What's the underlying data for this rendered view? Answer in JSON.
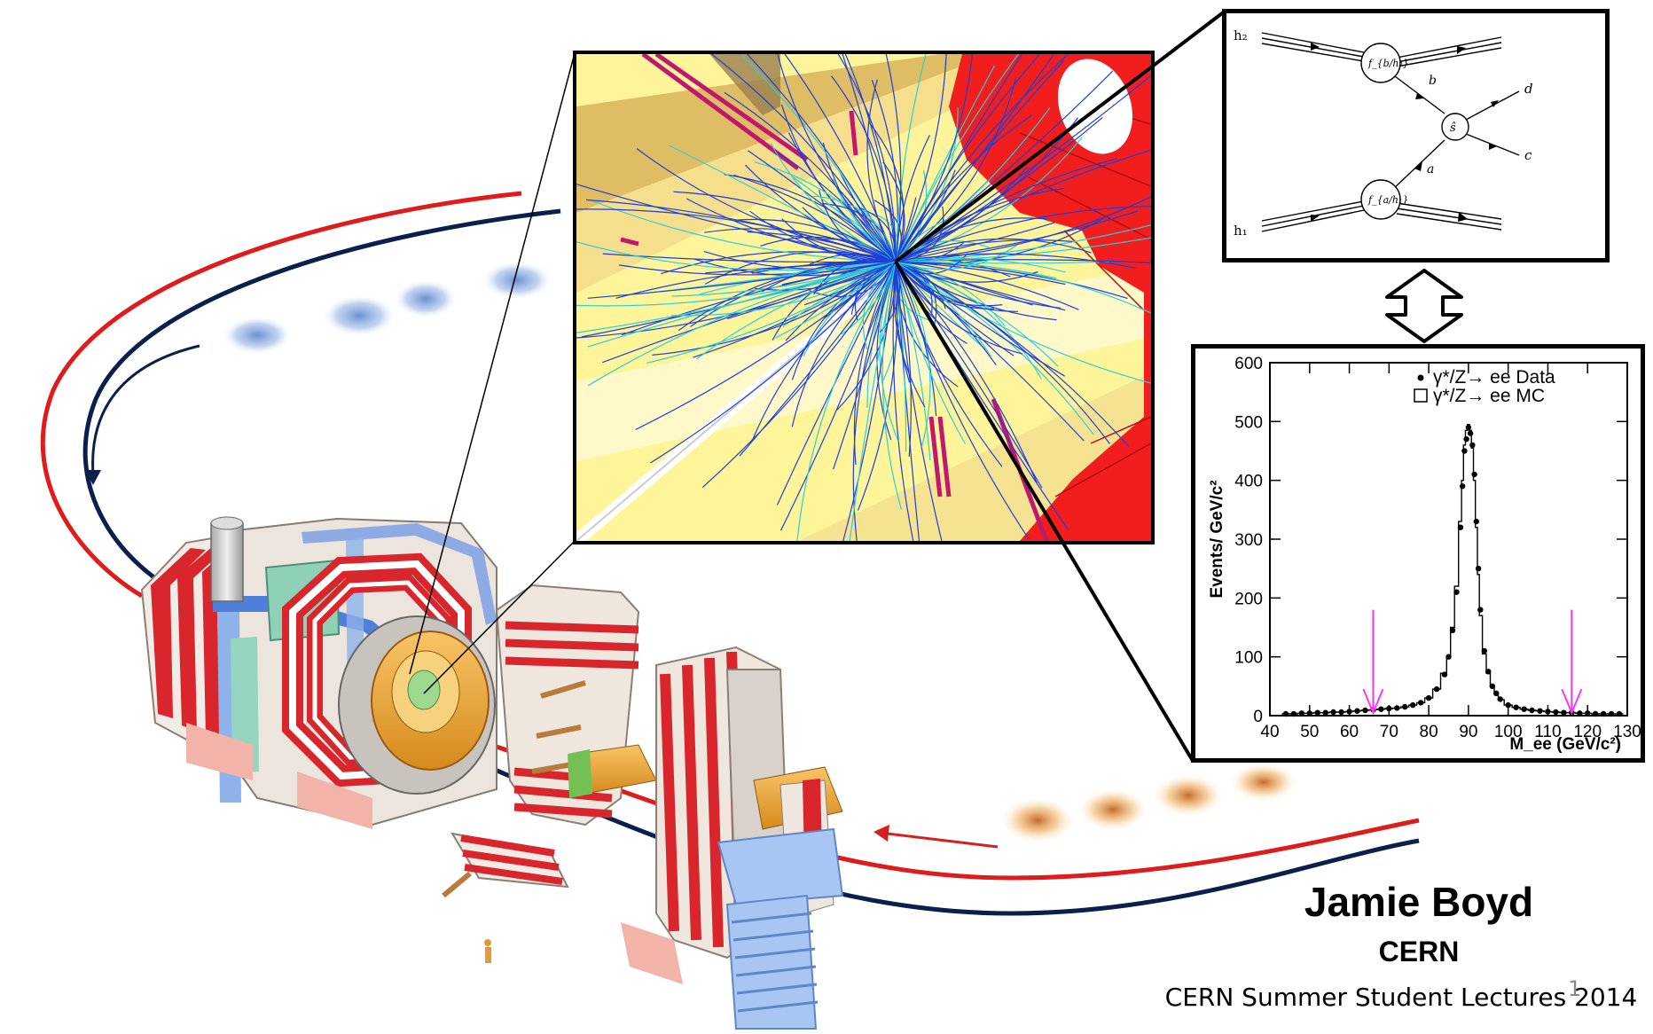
{
  "credits": {
    "author": "Jamie Boyd",
    "affiliation": "CERN",
    "event": "CERN Summer Student Lectures 2014",
    "slide_number": "1"
  },
  "feynman": {
    "labels": {
      "h2": "h₂",
      "h1": "h₁",
      "f_top": "f_{b/h₂}",
      "f_bot": "f_{a/h₁}",
      "b": "b",
      "a": "a",
      "shat": "ŝ",
      "d": "d",
      "c": "c"
    }
  },
  "chart_data": {
    "type": "histogram",
    "xlabel": "M_ee (GeV/c²)",
    "ylabel": "Events/ GeV/c²",
    "xlim": [
      40,
      130
    ],
    "ylim": [
      0,
      600
    ],
    "xticks": [
      40,
      50,
      60,
      70,
      80,
      90,
      100,
      110,
      120,
      130
    ],
    "yticks": [
      0,
      100,
      200,
      300,
      400,
      500,
      600
    ],
    "legend": {
      "placement": "top-right",
      "entries": [
        "γ*/Z→ ee Data",
        "γ*/Z→ ee MC"
      ]
    },
    "mass_window_arrows": [
      66,
      116
    ],
    "arrow_color": "#ff33ff",
    "series": [
      {
        "name": "γ*/Z→ ee Data",
        "style": "points",
        "x": [
          44,
          46,
          48,
          50,
          52,
          54,
          56,
          58,
          60,
          62,
          64,
          66,
          68,
          70,
          72,
          74,
          76,
          78,
          80,
          82,
          84,
          85,
          86,
          87,
          88,
          88.5,
          89,
          89.5,
          90,
          90.5,
          91,
          91.5,
          92,
          92.5,
          93,
          94,
          95,
          96,
          97,
          98,
          100,
          102,
          104,
          106,
          108,
          110,
          112,
          114,
          116,
          118,
          120,
          122,
          124,
          126,
          128
        ],
        "y": [
          3,
          3,
          4,
          4,
          5,
          5,
          6,
          6,
          7,
          8,
          9,
          10,
          11,
          12,
          13,
          15,
          18,
          22,
          30,
          45,
          70,
          100,
          145,
          210,
          320,
          390,
          450,
          470,
          490,
          480,
          460,
          410,
          330,
          250,
          180,
          110,
          75,
          50,
          38,
          28,
          18,
          14,
          11,
          9,
          8,
          7,
          6,
          5,
          5,
          4,
          4,
          3,
          3,
          3,
          3
        ]
      },
      {
        "name": "γ*/Z→ ee MC",
        "style": "step",
        "x": [
          44,
          46,
          48,
          50,
          52,
          54,
          56,
          58,
          60,
          62,
          64,
          66,
          68,
          70,
          72,
          74,
          76,
          78,
          80,
          82,
          84,
          85,
          86,
          87,
          88,
          88.5,
          89,
          89.5,
          90,
          90.5,
          91,
          91.5,
          92,
          92.5,
          93,
          94,
          95,
          96,
          97,
          98,
          100,
          102,
          104,
          106,
          108,
          110,
          112,
          114,
          116,
          118,
          120,
          122,
          124,
          126,
          128
        ],
        "y": [
          3,
          3,
          4,
          4,
          5,
          5,
          6,
          6,
          7,
          8,
          9,
          10,
          11,
          12,
          13,
          15,
          18,
          22,
          30,
          45,
          72,
          100,
          150,
          220,
          330,
          400,
          460,
          485,
          495,
          485,
          455,
          400,
          320,
          240,
          170,
          105,
          72,
          50,
          37,
          27,
          18,
          14,
          11,
          9,
          8,
          7,
          6,
          5,
          5,
          4,
          4,
          3,
          3,
          3,
          3
        ]
      }
    ]
  },
  "colors": {
    "beam_red": "#e01b1b",
    "beam_blue": "#0b1f4d",
    "magnet_red": "#d8262c",
    "detector_yellow": "#fdf39a",
    "track_blue": "#1f3fd8",
    "track_cyan": "#2ccfd8"
  }
}
